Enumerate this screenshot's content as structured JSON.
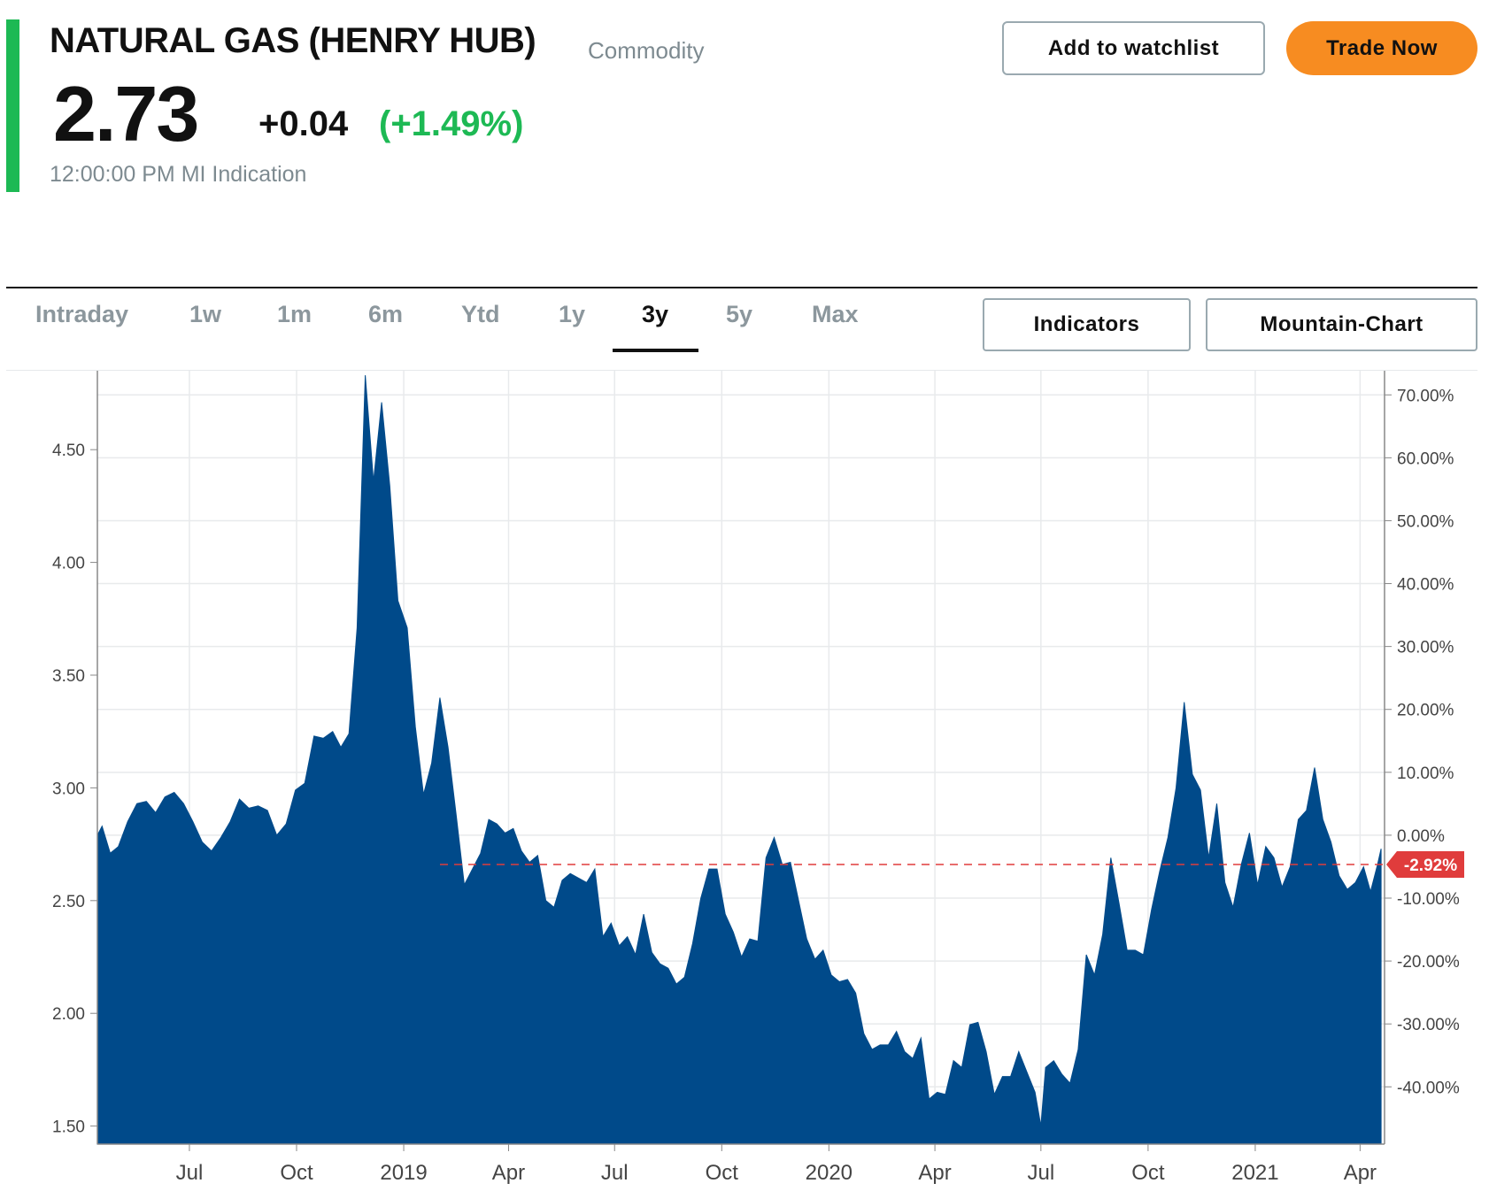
{
  "header": {
    "title": "NATURAL GAS (HENRY HUB)",
    "category": "Commodity",
    "price": "2.73",
    "change": "+0.04",
    "change_pct": "(+1.49%)",
    "timestamp": "12:00:00 PM MI Indication",
    "accent_color": "#1db954"
  },
  "actions": {
    "watchlist_label": "Add to watchlist",
    "trade_label": "Trade Now",
    "trade_color": "#f78c21"
  },
  "tabs": [
    {
      "label": "Intraday",
      "active": false
    },
    {
      "label": "1w",
      "active": false
    },
    {
      "label": "1m",
      "active": false
    },
    {
      "label": "6m",
      "active": false
    },
    {
      "label": "Ytd",
      "active": false
    },
    {
      "label": "1y",
      "active": false
    },
    {
      "label": "3y",
      "active": true
    },
    {
      "label": "5y",
      "active": false
    },
    {
      "label": "Max",
      "active": false
    }
  ],
  "chart_controls": {
    "indicators_label": "Indicators",
    "chart_type_label": "Mountain-Chart"
  },
  "chart_data": {
    "type": "area",
    "fill_color": "#004a8a",
    "baseline_color": "#e03c3c",
    "ylim": [
      1.42,
      4.85
    ],
    "yticks": [
      1.5,
      2.0,
      2.5,
      3.0,
      3.5,
      4.0,
      4.5
    ],
    "ytick_labels": [
      "1.50",
      "2.00",
      "2.50",
      "3.00",
      "3.50",
      "4.00",
      "4.50"
    ],
    "right_ticks": [
      {
        "value": 70,
        "label": "70.00%"
      },
      {
        "value": 60,
        "label": "60.00%"
      },
      {
        "value": 50,
        "label": "50.00%"
      },
      {
        "value": 40,
        "label": "40.00%"
      },
      {
        "value": 30,
        "label": "30.00%"
      },
      {
        "value": 20,
        "label": "20.00%"
      },
      {
        "value": 10,
        "label": "10.00%"
      },
      {
        "value": 0,
        "label": "0.00%"
      },
      {
        "value": -10,
        "label": "-10.00%"
      },
      {
        "value": -20,
        "label": "-20.00%"
      },
      {
        "value": -30,
        "label": "-30.00%"
      },
      {
        "value": -40,
        "label": "-40.00%"
      }
    ],
    "baseline_value": 2.66,
    "baseline_label": "-2.92%",
    "xlim": [
      "2018-04-13",
      "2021-04-22"
    ],
    "x_labels": [
      {
        "date": "2018-07-01",
        "label": "Jul"
      },
      {
        "date": "2018-10-01",
        "label": "Oct"
      },
      {
        "date": "2019-01-01",
        "label": "2019"
      },
      {
        "date": "2019-04-01",
        "label": "Apr"
      },
      {
        "date": "2019-07-01",
        "label": "Jul"
      },
      {
        "date": "2019-10-01",
        "label": "Oct"
      },
      {
        "date": "2020-01-01",
        "label": "2020"
      },
      {
        "date": "2020-04-01",
        "label": "Apr"
      },
      {
        "date": "2020-07-01",
        "label": "Jul"
      },
      {
        "date": "2020-10-01",
        "label": "Oct"
      },
      {
        "date": "2021-01-01",
        "label": "2021"
      },
      {
        "date": "2021-04-01",
        "label": "Apr"
      }
    ],
    "points": [
      [
        "2018-04-13",
        2.79
      ],
      [
        "2018-04-17",
        2.83
      ],
      [
        "2018-04-24",
        2.71
      ],
      [
        "2018-05-01",
        2.74
      ],
      [
        "2018-05-09",
        2.85
      ],
      [
        "2018-05-17",
        2.93
      ],
      [
        "2018-05-25",
        2.94
      ],
      [
        "2018-06-02",
        2.89
      ],
      [
        "2018-06-10",
        2.96
      ],
      [
        "2018-06-18",
        2.98
      ],
      [
        "2018-06-26",
        2.93
      ],
      [
        "2018-07-04",
        2.85
      ],
      [
        "2018-07-12",
        2.76
      ],
      [
        "2018-07-20",
        2.72
      ],
      [
        "2018-07-28",
        2.78
      ],
      [
        "2018-08-05",
        2.85
      ],
      [
        "2018-08-13",
        2.95
      ],
      [
        "2018-08-21",
        2.91
      ],
      [
        "2018-08-29",
        2.92
      ],
      [
        "2018-09-06",
        2.9
      ],
      [
        "2018-09-14",
        2.79
      ],
      [
        "2018-09-22",
        2.84
      ],
      [
        "2018-09-30",
        2.99
      ],
      [
        "2018-10-08",
        3.02
      ],
      [
        "2018-10-16",
        3.23
      ],
      [
        "2018-10-24",
        3.22
      ],
      [
        "2018-11-01",
        3.25
      ],
      [
        "2018-11-08",
        3.18
      ],
      [
        "2018-11-15",
        3.24
      ],
      [
        "2018-11-22",
        3.71
      ],
      [
        "2018-11-29",
        4.83
      ],
      [
        "2018-12-06",
        4.36
      ],
      [
        "2018-12-13",
        4.71
      ],
      [
        "2018-12-20",
        4.34
      ],
      [
        "2018-12-27",
        3.83
      ],
      [
        "2019-01-04",
        3.71
      ],
      [
        "2019-01-11",
        3.27
      ],
      [
        "2019-01-18",
        2.97
      ],
      [
        "2019-01-25",
        3.11
      ],
      [
        "2019-02-01",
        3.4
      ],
      [
        "2019-02-08",
        3.18
      ],
      [
        "2019-02-15",
        2.88
      ],
      [
        "2019-02-22",
        2.57
      ],
      [
        "2019-03-01",
        2.64
      ],
      [
        "2019-03-08",
        2.71
      ],
      [
        "2019-03-15",
        2.86
      ],
      [
        "2019-03-22",
        2.84
      ],
      [
        "2019-03-29",
        2.8
      ],
      [
        "2019-04-05",
        2.82
      ],
      [
        "2019-04-12",
        2.72
      ],
      [
        "2019-04-19",
        2.67
      ],
      [
        "2019-04-26",
        2.7
      ],
      [
        "2019-05-03",
        2.5
      ],
      [
        "2019-05-10",
        2.47
      ],
      [
        "2019-05-17",
        2.59
      ],
      [
        "2019-05-24",
        2.62
      ],
      [
        "2019-05-31",
        2.6
      ],
      [
        "2019-06-07",
        2.58
      ],
      [
        "2019-06-14",
        2.64
      ],
      [
        "2019-06-21",
        2.34
      ],
      [
        "2019-06-28",
        2.4
      ],
      [
        "2019-07-05",
        2.3
      ],
      [
        "2019-07-12",
        2.34
      ],
      [
        "2019-07-19",
        2.26
      ],
      [
        "2019-07-26",
        2.44
      ],
      [
        "2019-08-02",
        2.27
      ],
      [
        "2019-08-09",
        2.22
      ],
      [
        "2019-08-16",
        2.2
      ],
      [
        "2019-08-23",
        2.13
      ],
      [
        "2019-08-30",
        2.16
      ],
      [
        "2019-09-06",
        2.31
      ],
      [
        "2019-09-13",
        2.51
      ],
      [
        "2019-09-20",
        2.64
      ],
      [
        "2019-09-27",
        2.64
      ],
      [
        "2019-10-04",
        2.44
      ],
      [
        "2019-10-11",
        2.36
      ],
      [
        "2019-10-18",
        2.25
      ],
      [
        "2019-10-25",
        2.33
      ],
      [
        "2019-11-01",
        2.32
      ],
      [
        "2019-11-08",
        2.69
      ],
      [
        "2019-11-15",
        2.78
      ],
      [
        "2019-11-22",
        2.66
      ],
      [
        "2019-11-29",
        2.67
      ],
      [
        "2019-12-06",
        2.5
      ],
      [
        "2019-12-13",
        2.33
      ],
      [
        "2019-12-20",
        2.24
      ],
      [
        "2019-12-27",
        2.28
      ],
      [
        "2020-01-03",
        2.17
      ],
      [
        "2020-01-10",
        2.14
      ],
      [
        "2020-01-17",
        2.15
      ],
      [
        "2020-01-24",
        2.09
      ],
      [
        "2020-01-31",
        1.91
      ],
      [
        "2020-02-07",
        1.84
      ],
      [
        "2020-02-14",
        1.86
      ],
      [
        "2020-02-21",
        1.86
      ],
      [
        "2020-02-28",
        1.92
      ],
      [
        "2020-03-06",
        1.83
      ],
      [
        "2020-03-13",
        1.8
      ],
      [
        "2020-03-20",
        1.89
      ],
      [
        "2020-03-27",
        1.62
      ],
      [
        "2020-04-03",
        1.65
      ],
      [
        "2020-04-10",
        1.64
      ],
      [
        "2020-04-17",
        1.79
      ],
      [
        "2020-04-24",
        1.76
      ],
      [
        "2020-05-01",
        1.95
      ],
      [
        "2020-05-08",
        1.96
      ],
      [
        "2020-05-15",
        1.83
      ],
      [
        "2020-05-22",
        1.64
      ],
      [
        "2020-05-29",
        1.72
      ],
      [
        "2020-06-05",
        1.72
      ],
      [
        "2020-06-12",
        1.83
      ],
      [
        "2020-06-19",
        1.74
      ],
      [
        "2020-06-26",
        1.65
      ],
      [
        "2020-07-01",
        1.5
      ],
      [
        "2020-07-05",
        1.76
      ],
      [
        "2020-07-12",
        1.79
      ],
      [
        "2020-07-19",
        1.73
      ],
      [
        "2020-07-26",
        1.69
      ],
      [
        "2020-08-02",
        1.84
      ],
      [
        "2020-08-09",
        2.26
      ],
      [
        "2020-08-16",
        2.17
      ],
      [
        "2020-08-23",
        2.35
      ],
      [
        "2020-08-30",
        2.69
      ],
      [
        "2020-09-06",
        2.49
      ],
      [
        "2020-09-13",
        2.28
      ],
      [
        "2020-09-20",
        2.28
      ],
      [
        "2020-09-27",
        2.26
      ],
      [
        "2020-10-04",
        2.46
      ],
      [
        "2020-10-11",
        2.63
      ],
      [
        "2020-10-18",
        2.78
      ],
      [
        "2020-10-25",
        3.0
      ],
      [
        "2020-11-01",
        3.38
      ],
      [
        "2020-11-08",
        3.06
      ],
      [
        "2020-11-15",
        2.99
      ],
      [
        "2020-11-22",
        2.69
      ],
      [
        "2020-11-29",
        2.93
      ],
      [
        "2020-12-06",
        2.58
      ],
      [
        "2020-12-13",
        2.47
      ],
      [
        "2020-12-20",
        2.66
      ],
      [
        "2020-12-27",
        2.8
      ],
      [
        "2021-01-03",
        2.57
      ],
      [
        "2021-01-10",
        2.74
      ],
      [
        "2021-01-17",
        2.69
      ],
      [
        "2021-01-24",
        2.56
      ],
      [
        "2021-01-31",
        2.65
      ],
      [
        "2021-02-07",
        2.86
      ],
      [
        "2021-02-14",
        2.9
      ],
      [
        "2021-02-21",
        3.09
      ],
      [
        "2021-02-28",
        2.86
      ],
      [
        "2021-03-07",
        2.76
      ],
      [
        "2021-03-14",
        2.61
      ],
      [
        "2021-03-21",
        2.55
      ],
      [
        "2021-03-28",
        2.58
      ],
      [
        "2021-04-04",
        2.65
      ],
      [
        "2021-04-10",
        2.54
      ],
      [
        "2021-04-16",
        2.66
      ],
      [
        "2021-04-19",
        2.73
      ]
    ]
  }
}
